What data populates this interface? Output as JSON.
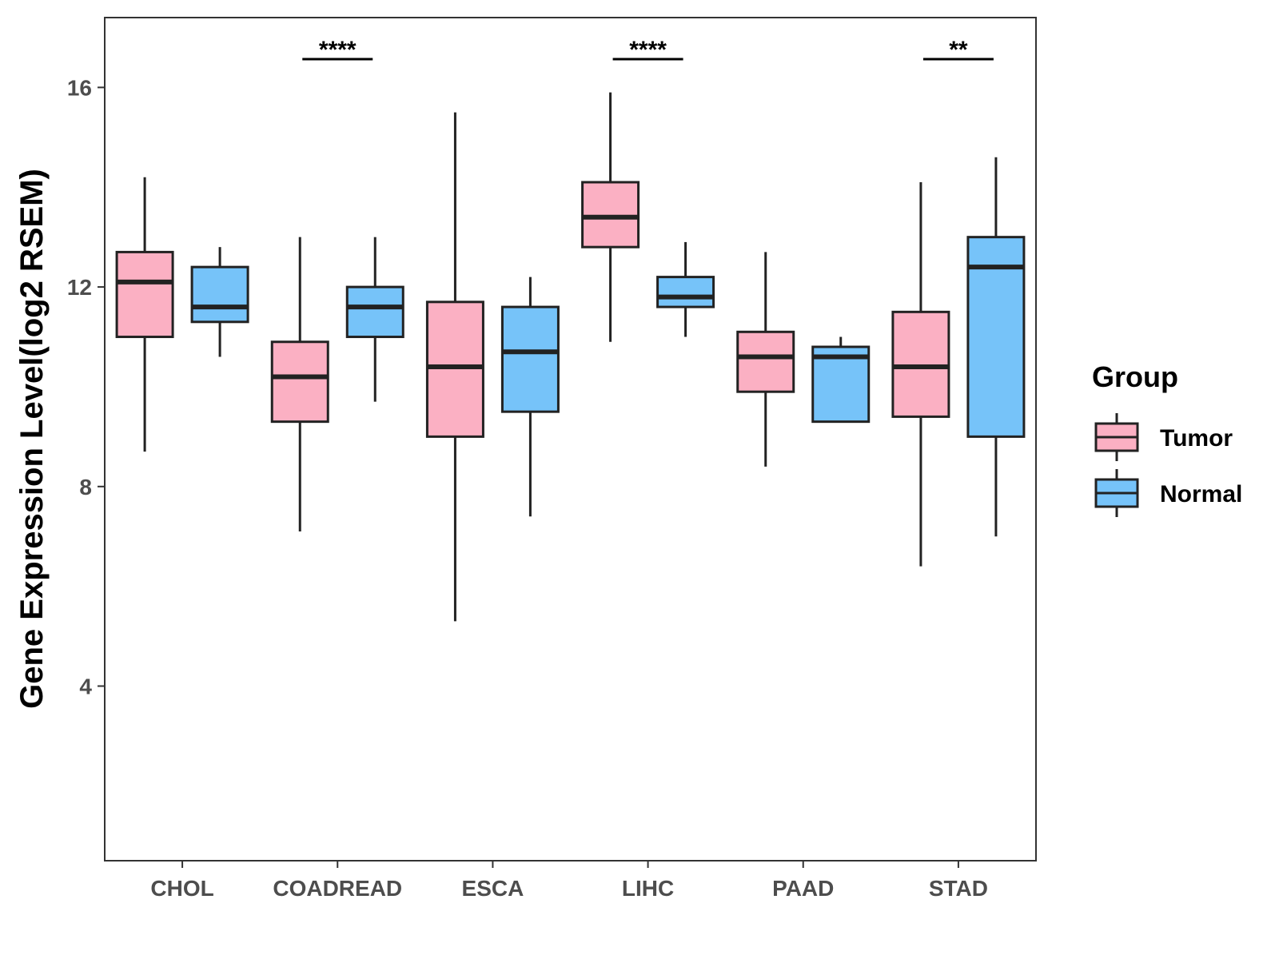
{
  "chart_data": {
    "type": "boxplot",
    "title": "",
    "xlabel": "",
    "ylabel": "Gene Expression Level(log2 RSEM)",
    "ylim": [
      0.5,
      17.4
    ],
    "yticks": [
      4,
      8,
      12,
      16
    ],
    "categories": [
      "CHOL",
      "COADREAD",
      "ESCA",
      "LIHC",
      "PAAD",
      "STAD"
    ],
    "legend": {
      "title": "Group",
      "position": "right"
    },
    "series": [
      {
        "name": "Tumor",
        "color": "#FBB0C3",
        "boxes": [
          {
            "whisker_low": 8.7,
            "q1": 11.0,
            "median": 12.1,
            "q3": 12.7,
            "whisker_high": 14.2
          },
          {
            "whisker_low": 7.1,
            "q1": 9.3,
            "median": 10.2,
            "q3": 10.9,
            "whisker_high": 13.0
          },
          {
            "whisker_low": 5.3,
            "q1": 9.0,
            "median": 10.4,
            "q3": 11.7,
            "whisker_high": 15.5
          },
          {
            "whisker_low": 10.9,
            "q1": 12.8,
            "median": 13.4,
            "q3": 14.1,
            "whisker_high": 15.9
          },
          {
            "whisker_low": 8.4,
            "q1": 9.9,
            "median": 10.6,
            "q3": 11.1,
            "whisker_high": 12.7
          },
          {
            "whisker_low": 6.4,
            "q1": 9.4,
            "median": 10.4,
            "q3": 11.5,
            "whisker_high": 14.1
          }
        ]
      },
      {
        "name": "Normal",
        "color": "#76C3F9",
        "boxes": [
          {
            "whisker_low": 10.6,
            "q1": 11.3,
            "median": 11.6,
            "q3": 12.4,
            "whisker_high": 12.8
          },
          {
            "whisker_low": 9.7,
            "q1": 11.0,
            "median": 11.6,
            "q3": 12.0,
            "whisker_high": 13.0
          },
          {
            "whisker_low": 7.4,
            "q1": 9.5,
            "median": 10.7,
            "q3": 11.6,
            "whisker_high": 12.2
          },
          {
            "whisker_low": 11.0,
            "q1": 11.6,
            "median": 11.8,
            "q3": 12.2,
            "whisker_high": 12.9
          },
          {
            "whisker_low": 9.3,
            "q1": 9.3,
            "median": 10.6,
            "q3": 10.8,
            "whisker_high": 11.0
          },
          {
            "whisker_low": 7.0,
            "q1": 9.0,
            "median": 12.4,
            "q3": 13.0,
            "whisker_high": 14.6
          }
        ]
      }
    ],
    "significance": [
      {
        "category": "COADREAD",
        "label": "****"
      },
      {
        "category": "LIHC",
        "label": "****"
      },
      {
        "category": "STAD",
        "label": "**"
      }
    ]
  }
}
